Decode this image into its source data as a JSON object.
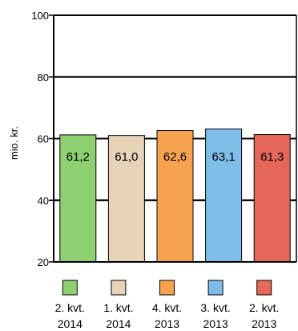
{
  "chart_data": {
    "type": "bar",
    "ylabel": "mio. kr.",
    "xlabel": "",
    "ylim": [
      20,
      100
    ],
    "yticks": [
      20,
      40,
      60,
      80,
      100
    ],
    "grid": true,
    "categories": [
      [
        "2. kvt.",
        "2014"
      ],
      [
        "1. kvt.",
        "2014"
      ],
      [
        "4. kvt.",
        "2013"
      ],
      [
        "3. kvt.",
        "2013"
      ],
      [
        "2. kvt.",
        "2013"
      ]
    ],
    "values": [
      61.2,
      61.0,
      62.6,
      63.1,
      61.3
    ],
    "value_labels": [
      "61,2",
      "61,0",
      "62,6",
      "63,1",
      "61,3"
    ],
    "colors": [
      "#8ecf71",
      "#e6d3b8",
      "#f7a24e",
      "#7fbde9",
      "#e5675a"
    ],
    "legend_position": "bottom"
  }
}
